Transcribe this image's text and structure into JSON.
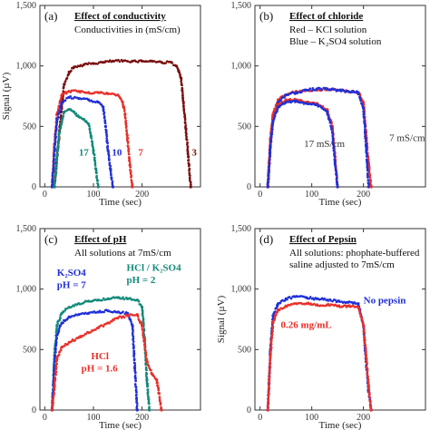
{
  "colors": {
    "maroon": "#7a1010",
    "red": "#e8302a",
    "blue": "#2030d8",
    "teal": "#138a7a",
    "axis": "#333333"
  },
  "chart_data": [
    {
      "type": "scatter",
      "panel_label": "(a)",
      "title": "Effect of conductivity",
      "subtitle": "Conductivities in (mS/cm)",
      "xlabel": "Time (sec)",
      "ylabel": "Signal (µV)",
      "xlim": [
        -10,
        320
      ],
      "ylim": [
        0,
        1500
      ],
      "xticks": [
        "0",
        "100",
        "200"
      ],
      "xtick_values": [
        0,
        100,
        200
      ],
      "yticks": [
        "0",
        "500",
        "1,000",
        "1,500"
      ],
      "ytick_values": [
        0,
        500,
        1000,
        1500
      ],
      "series": [
        {
          "color": "maroon",
          "x": [
            20,
            30,
            40,
            50,
            60,
            80,
            100,
            120,
            140,
            160,
            180,
            200,
            220,
            240,
            260,
            270,
            275,
            280,
            285,
            290,
            295,
            300
          ],
          "y": [
            0,
            450,
            850,
            950,
            990,
            1010,
            1020,
            1030,
            1040,
            1040,
            1040,
            1040,
            1040,
            1030,
            1030,
            1000,
            960,
            900,
            700,
            480,
            250,
            0
          ]
        },
        {
          "color": "red",
          "x": [
            15,
            20,
            25,
            35,
            50,
            70,
            90,
            110,
            130,
            150,
            160,
            165,
            170,
            175,
            180
          ],
          "y": [
            0,
            350,
            600,
            760,
            790,
            790,
            780,
            780,
            770,
            760,
            700,
            600,
            400,
            180,
            0
          ]
        },
        {
          "color": "blue",
          "x": [
            15,
            20,
            25,
            35,
            50,
            70,
            90,
            110,
            120,
            125,
            130,
            135,
            140
          ],
          "y": [
            0,
            300,
            550,
            700,
            740,
            730,
            720,
            700,
            660,
            500,
            300,
            150,
            0
          ]
        },
        {
          "color": "teal",
          "x": [
            20,
            25,
            30,
            40,
            50,
            60,
            70,
            80,
            90,
            95,
            100,
            105,
            110
          ],
          "y": [
            0,
            250,
            450,
            620,
            640,
            620,
            580,
            560,
            520,
            420,
            300,
            150,
            0
          ]
        }
      ],
      "annotations": [
        {
          "text": "17",
          "color": "teal",
          "x": 70,
          "y": 260
        },
        {
          "text": "10",
          "color": "blue",
          "x": 138,
          "y": 260
        },
        {
          "text": "7",
          "color": "red",
          "x": 192,
          "y": 260
        },
        {
          "text": "3",
          "color": "maroon",
          "x": 302,
          "y": 260
        }
      ]
    },
    {
      "type": "scatter",
      "panel_label": "(b)",
      "title": "Effect of chloride",
      "subtitle_red": "Red – KCl solution",
      "subtitle_blue": "Blue – K₂SO4 solution",
      "xlabel": "Time (sec)",
      "ylabel": "",
      "xlim": [
        -10,
        320
      ],
      "ylim": [
        0,
        1500
      ],
      "xticks": [
        "0",
        "100",
        "200"
      ],
      "xtick_values": [
        0,
        100,
        200
      ],
      "yticks": [
        "0",
        "500",
        "1,000",
        "1,500"
      ],
      "ytick_values": [
        0,
        500,
        1000,
        1500
      ],
      "series": [
        {
          "color": "red",
          "x": [
            15,
            20,
            25,
            35,
            50,
            70,
            90,
            110,
            130,
            150,
            170,
            190,
            200,
            205,
            210,
            215
          ],
          "y": [
            0,
            400,
            600,
            720,
            760,
            790,
            800,
            800,
            810,
            800,
            790,
            780,
            700,
            450,
            200,
            0
          ]
        },
        {
          "color": "blue",
          "x": [
            15,
            20,
            25,
            35,
            50,
            70,
            90,
            110,
            130,
            150,
            170,
            190,
            200,
            205,
            210
          ],
          "y": [
            0,
            350,
            560,
            700,
            760,
            780,
            800,
            810,
            810,
            800,
            790,
            780,
            650,
            350,
            0
          ]
        },
        {
          "color": "red",
          "x": [
            15,
            20,
            25,
            35,
            50,
            70,
            90,
            110,
            130,
            140,
            145,
            150
          ],
          "y": [
            0,
            380,
            580,
            680,
            720,
            720,
            700,
            690,
            640,
            500,
            250,
            0
          ]
        },
        {
          "color": "blue",
          "x": [
            15,
            20,
            25,
            35,
            50,
            70,
            90,
            110,
            130,
            140,
            145,
            150
          ],
          "y": [
            0,
            330,
            540,
            660,
            700,
            710,
            690,
            680,
            620,
            450,
            200,
            0
          ]
        }
      ],
      "annotations": [
        {
          "text": "17 mS/cm",
          "color": "axis",
          "x": 85,
          "y": 330
        },
        {
          "text": "7  mS/cm",
          "color": "axis",
          "x": 250,
          "y": 380
        }
      ]
    },
    {
      "type": "scatter",
      "panel_label": "(c)",
      "title": "Effect of pH",
      "subtitle": "All solutions at 7mS/cm",
      "xlabel": "Time (sec)",
      "ylabel": "",
      "xlim": [
        -10,
        320
      ],
      "ylim": [
        0,
        1500
      ],
      "xticks": [
        "0",
        "100",
        "200"
      ],
      "xtick_values": [
        0,
        100,
        200
      ],
      "yticks": [
        "0",
        "500",
        "1,000",
        "1,500"
      ],
      "ytick_values": [
        0,
        500,
        1000,
        1500
      ],
      "series": [
        {
          "color": "teal",
          "x": [
            15,
            20,
            25,
            35,
            50,
            70,
            90,
            110,
            130,
            150,
            170,
            190,
            200,
            205,
            210,
            215
          ],
          "y": [
            0,
            450,
            700,
            800,
            850,
            880,
            900,
            910,
            920,
            930,
            920,
            910,
            850,
            600,
            250,
            0
          ]
        },
        {
          "color": "blue",
          "x": [
            15,
            20,
            25,
            35,
            50,
            70,
            90,
            110,
            130,
            150,
            170,
            180,
            185,
            190
          ],
          "y": [
            0,
            400,
            620,
            720,
            770,
            790,
            800,
            810,
            820,
            810,
            800,
            700,
            350,
            0
          ]
        },
        {
          "color": "red",
          "x": [
            15,
            20,
            25,
            35,
            50,
            70,
            90,
            110,
            130,
            150,
            170,
            190,
            200,
            210,
            220,
            230,
            240
          ],
          "y": [
            0,
            200,
            420,
            520,
            560,
            600,
            640,
            680,
            720,
            760,
            780,
            790,
            700,
            400,
            300,
            250,
            0
          ]
        }
      ],
      "annotations": [
        {
          "text": "K₂SO4",
          "color": "blue",
          "x": 25,
          "y": 1110
        },
        {
          "text": "pH = 7",
          "color": "blue",
          "x": 25,
          "y": 1010
        },
        {
          "text": "HCl / K₂SO4",
          "color": "teal",
          "x": 168,
          "y": 1150
        },
        {
          "text": "pH = 2",
          "color": "teal",
          "x": 168,
          "y": 1050
        },
        {
          "text": "HCl",
          "color": "red",
          "x": 95,
          "y": 420
        },
        {
          "text": "pH = 1.6",
          "color": "red",
          "x": 75,
          "y": 320
        }
      ]
    },
    {
      "type": "scatter",
      "panel_label": "(d)",
      "title": "Effect of Pepsin",
      "subtitle": "All solutions: phophate-buffered",
      "subtitle2": "saline adjusted to 7mS/cm",
      "xlabel": "Time (sec)",
      "ylabel": "Signal (µV)",
      "xlim": [
        -10,
        320
      ],
      "ylim": [
        0,
        1500
      ],
      "xticks": [
        "0",
        "100",
        "200"
      ],
      "xtick_values": [
        0,
        100,
        200
      ],
      "yticks": [
        "0",
        "500",
        "1,000",
        "1,500"
      ],
      "ytick_values": [
        0,
        500,
        1000,
        1500
      ],
      "series": [
        {
          "color": "blue",
          "x": [
            15,
            20,
            25,
            35,
            50,
            70,
            90,
            110,
            130,
            150,
            170,
            190,
            200,
            205,
            210,
            215
          ],
          "y": [
            0,
            500,
            780,
            880,
            920,
            940,
            930,
            920,
            910,
            900,
            890,
            880,
            700,
            400,
            150,
            0
          ]
        },
        {
          "color": "red",
          "x": [
            15,
            20,
            25,
            35,
            50,
            70,
            90,
            110,
            130,
            150,
            170,
            190,
            200,
            205,
            210,
            215
          ],
          "y": [
            0,
            450,
            720,
            830,
            860,
            880,
            880,
            870,
            870,
            860,
            860,
            850,
            700,
            450,
            200,
            0
          ]
        }
      ],
      "annotations": [
        {
          "text": "No pepsin",
          "color": "blue",
          "x": 200,
          "y": 880
        },
        {
          "text": "0.26 mg/mL",
          "color": "red",
          "x": 40,
          "y": 680
        }
      ]
    }
  ]
}
